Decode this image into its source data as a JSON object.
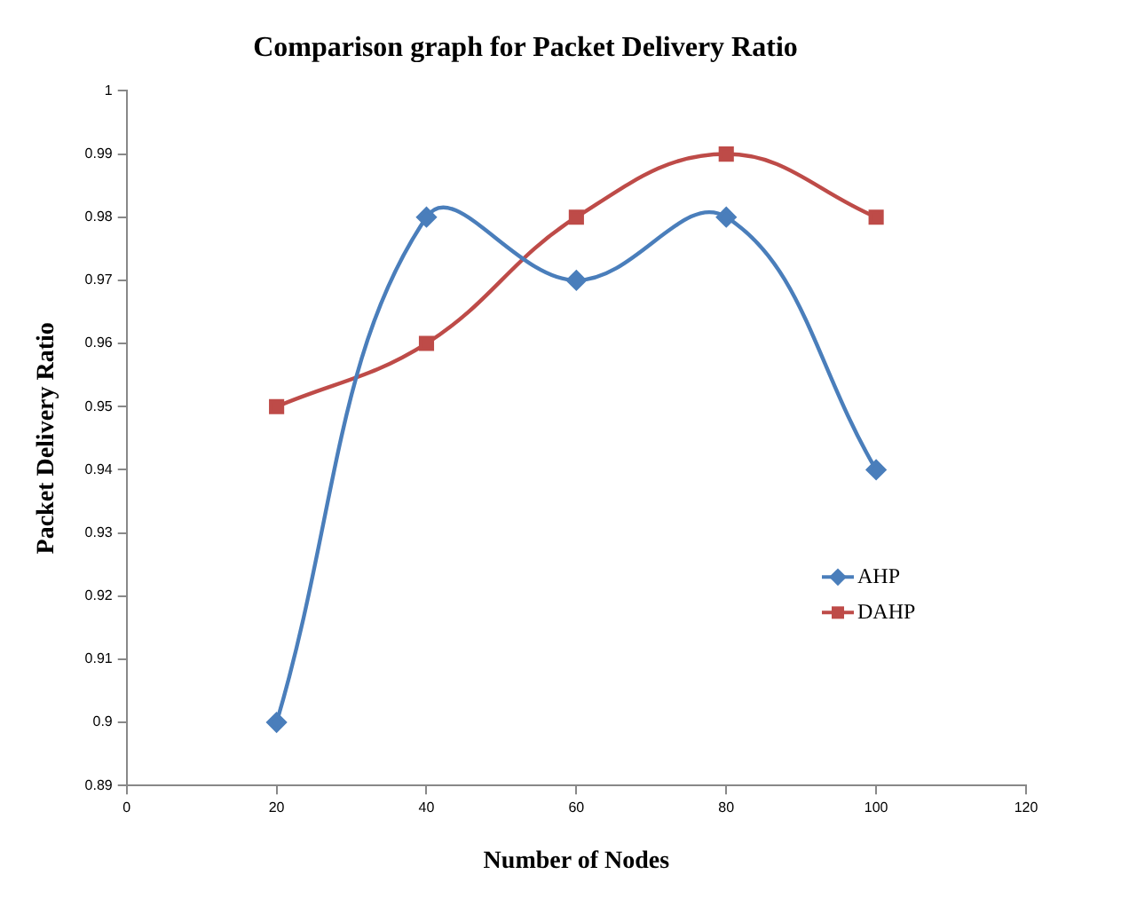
{
  "chart_data": {
    "type": "line",
    "title": "Comparison graph for Packet Delivery Ratio",
    "xlabel": "Number of Nodes",
    "ylabel": "Packet Delivery Ratio",
    "x": [
      20,
      40,
      60,
      80,
      100
    ],
    "series": [
      {
        "name": "AHP",
        "color": "#4a7ebb",
        "marker": "diamond",
        "values": [
          0.9,
          0.98,
          0.97,
          0.98,
          0.94
        ]
      },
      {
        "name": "DAHP",
        "color": "#be4b48",
        "marker": "square",
        "values": [
          0.95,
          0.96,
          0.98,
          0.99,
          0.98
        ]
      }
    ],
    "xlim": [
      0,
      120
    ],
    "xticks": [
      0,
      20,
      40,
      60,
      80,
      100,
      120
    ],
    "ylim": [
      0.89,
      1
    ],
    "yticks": [
      0.89,
      0.9,
      0.91,
      0.92,
      0.93,
      0.94,
      0.95,
      0.96,
      0.97,
      0.98,
      0.99,
      1
    ],
    "grid": false,
    "legend": "right"
  }
}
